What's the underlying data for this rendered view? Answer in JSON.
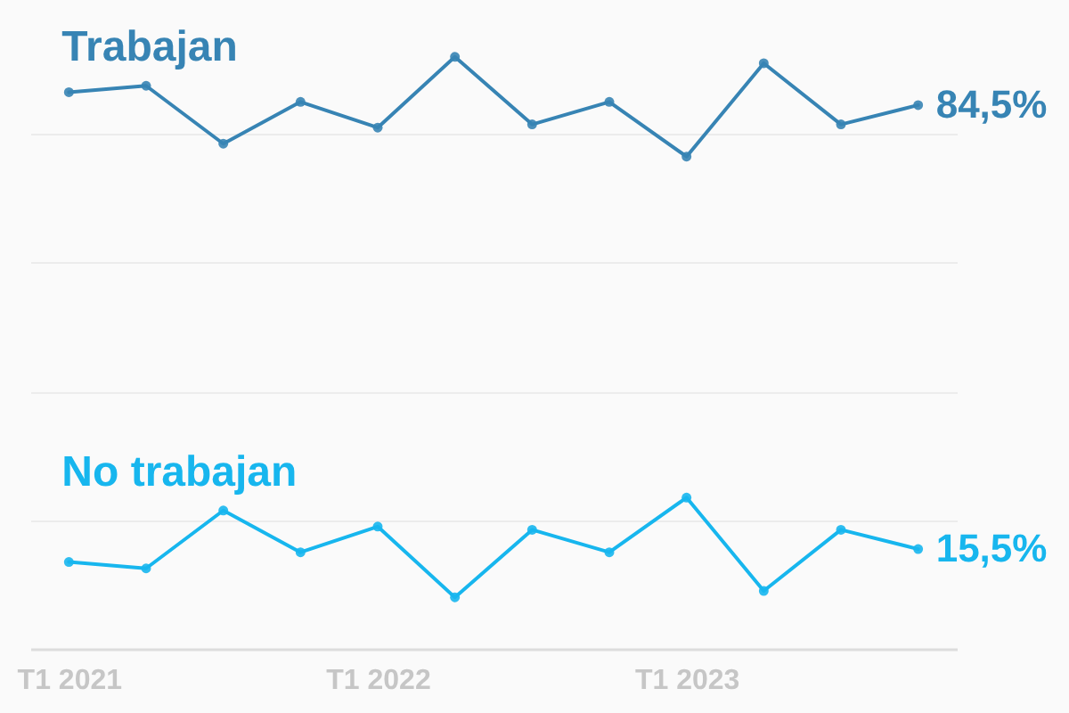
{
  "chart_data": {
    "type": "line",
    "categories": [
      "T1 2021",
      null,
      null,
      null,
      "T1 2022",
      null,
      null,
      null,
      "T1 2023",
      null,
      null,
      null
    ],
    "series": [
      {
        "name": "Trabajan",
        "color": "#3784b4",
        "values": [
          86.5,
          87.5,
          78.5,
          85,
          81,
          92,
          81.5,
          85,
          76.5,
          91,
          81.5,
          84.5
        ],
        "value_labels": [
          null,
          null,
          null,
          null,
          null,
          null,
          null,
          null,
          null,
          null,
          null,
          "84,5%"
        ]
      },
      {
        "name": "No trabajan",
        "color": "#17b6ee",
        "values": [
          13.5,
          12.5,
          21.5,
          15,
          19,
          8,
          18.5,
          15,
          23.5,
          9,
          18.5,
          15.5
        ],
        "value_labels": [
          null,
          null,
          null,
          null,
          null,
          null,
          null,
          null,
          null,
          null,
          null,
          "15,5%"
        ]
      }
    ],
    "ylim": [
      0,
      100
    ],
    "yticks": [
      {
        "value": 0,
        "label": null
      },
      {
        "value": 20,
        "label": null
      },
      {
        "value": 40,
        "label": null
      },
      {
        "value": 60,
        "label": null
      },
      {
        "value": 80,
        "label": null
      }
    ],
    "grid": "y",
    "marker": "circle",
    "tick_labels": "x"
  }
}
